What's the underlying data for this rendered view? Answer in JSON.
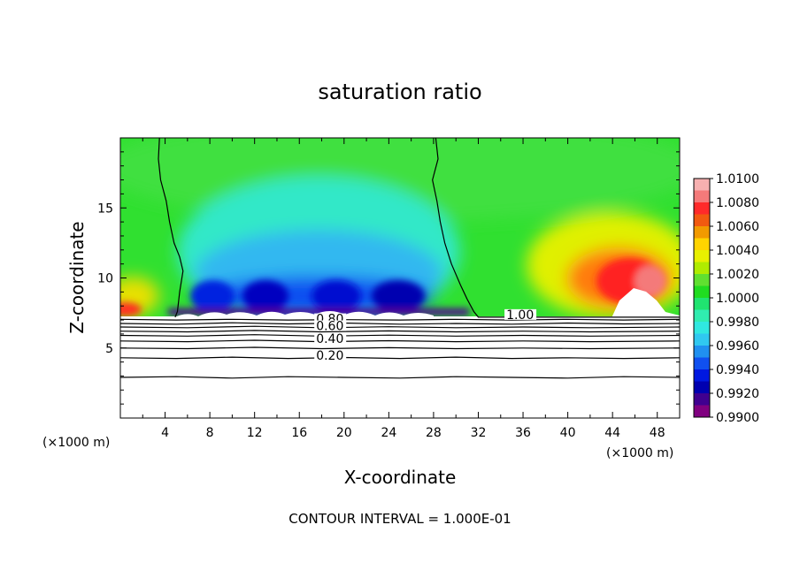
{
  "chart_data": {
    "type": "heatmap",
    "title": "saturation ratio",
    "xlabel": "X-coordinate",
    "ylabel": "Z-coordinate",
    "x_unit_left": "(×1000 m)",
    "x_unit_right": "(×1000 m)",
    "xlim": [
      0,
      50
    ],
    "ylim": [
      0,
      20
    ],
    "x_ticks": [
      "4",
      "8",
      "12",
      "16",
      "20",
      "24",
      "28",
      "32",
      "36",
      "40",
      "44",
      "48"
    ],
    "y_ticks": [
      "5",
      "10",
      "15"
    ],
    "footer": "CONTOUR INTERVAL = 1.000E-01",
    "colorbar": {
      "labels": [
        "1.0100",
        "1.0080",
        "1.0060",
        "1.0040",
        "1.0020",
        "1.0000",
        "0.9980",
        "0.9960",
        "0.9940",
        "0.9920",
        "0.9900"
      ],
      "colors": [
        "#f7b0b0",
        "#f47a7a",
        "#ff2a2a",
        "#f25a10",
        "#f29a00",
        "#ffd400",
        "#e8f000",
        "#b0ec00",
        "#60e030",
        "#20dc20",
        "#20e470",
        "#30ecb0",
        "#30e8e0",
        "#30c8f0",
        "#2090f0",
        "#1050f0",
        "#0018e0",
        "#0000b0",
        "#400090",
        "#800080"
      ]
    },
    "contour_labels": [
      {
        "text": "1.00",
        "x": 34.5,
        "y": 7.2
      },
      {
        "text": "0.80",
        "x": 17.5,
        "y": 6.9
      },
      {
        "text": "0.60",
        "x": 17.5,
        "y": 6.4
      },
      {
        "text": "0.40",
        "x": 17.5,
        "y": 5.5
      },
      {
        "text": "0.20",
        "x": 17.5,
        "y": 4.3
      }
    ],
    "contours": [
      {
        "level": "1.00",
        "points": [
          [
            3.5,
            20
          ],
          [
            3.4,
            18.5
          ],
          [
            3.6,
            17
          ],
          [
            4.1,
            15.5
          ],
          [
            4.4,
            14
          ],
          [
            4.8,
            12.5
          ],
          [
            5.3,
            11.5
          ],
          [
            5.6,
            10.5
          ],
          [
            5.3,
            9
          ],
          [
            5.1,
            7.6
          ],
          [
            4.9,
            7.2
          ]
        ]
      },
      {
        "level": "1.00",
        "points": [
          [
            28.2,
            20
          ],
          [
            28.4,
            18.5
          ],
          [
            27.9,
            17
          ],
          [
            28.3,
            15.5
          ],
          [
            28.6,
            14
          ],
          [
            29.0,
            12.5
          ],
          [
            29.6,
            11
          ],
          [
            30.4,
            9.5
          ],
          [
            31.0,
            8.5
          ],
          [
            31.6,
            7.6
          ],
          [
            32.0,
            7.2
          ],
          [
            50,
            7.2
          ]
        ]
      },
      {
        "level": "0.90",
        "points": [
          [
            0,
            7.05
          ],
          [
            5,
            7.0
          ],
          [
            10,
            7.05
          ],
          [
            15,
            7.0
          ],
          [
            20,
            7.02
          ],
          [
            25,
            7.0
          ],
          [
            30,
            7.05
          ],
          [
            35,
            7.0
          ],
          [
            40,
            7.05
          ],
          [
            45,
            7.0
          ],
          [
            50,
            7.05
          ]
        ]
      },
      {
        "level": "0.80",
        "points": [
          [
            0,
            6.75
          ],
          [
            5,
            6.7
          ],
          [
            10,
            6.8
          ],
          [
            15,
            6.72
          ],
          [
            20,
            6.78
          ],
          [
            25,
            6.7
          ],
          [
            30,
            6.75
          ],
          [
            35,
            6.7
          ],
          [
            40,
            6.78
          ],
          [
            45,
            6.72
          ],
          [
            50,
            6.75
          ]
        ]
      },
      {
        "level": "0.70",
        "points": [
          [
            0,
            6.5
          ],
          [
            6,
            6.45
          ],
          [
            12,
            6.55
          ],
          [
            18,
            6.45
          ],
          [
            24,
            6.52
          ],
          [
            30,
            6.45
          ],
          [
            36,
            6.5
          ],
          [
            42,
            6.45
          ],
          [
            50,
            6.5
          ]
        ]
      },
      {
        "level": "0.60",
        "points": [
          [
            0,
            6.2
          ],
          [
            6,
            6.15
          ],
          [
            12,
            6.25
          ],
          [
            18,
            6.15
          ],
          [
            24,
            6.22
          ],
          [
            30,
            6.15
          ],
          [
            36,
            6.2
          ],
          [
            42,
            6.15
          ],
          [
            50,
            6.2
          ]
        ]
      },
      {
        "level": "0.50",
        "points": [
          [
            0,
            5.9
          ],
          [
            6,
            5.85
          ],
          [
            12,
            5.95
          ],
          [
            18,
            5.85
          ],
          [
            24,
            5.92
          ],
          [
            30,
            5.85
          ],
          [
            36,
            5.9
          ],
          [
            42,
            5.85
          ],
          [
            50,
            5.9
          ]
        ]
      },
      {
        "level": "0.40",
        "points": [
          [
            0,
            5.5
          ],
          [
            6,
            5.45
          ],
          [
            12,
            5.55
          ],
          [
            18,
            5.45
          ],
          [
            24,
            5.52
          ],
          [
            30,
            5.45
          ],
          [
            36,
            5.5
          ],
          [
            42,
            5.45
          ],
          [
            50,
            5.5
          ]
        ]
      },
      {
        "level": "0.30",
        "points": [
          [
            0,
            5.0
          ],
          [
            6,
            4.95
          ],
          [
            12,
            5.05
          ],
          [
            18,
            4.95
          ],
          [
            24,
            5.02
          ],
          [
            30,
            4.95
          ],
          [
            36,
            5.0
          ],
          [
            42,
            4.95
          ],
          [
            50,
            5.0
          ]
        ]
      },
      {
        "level": "0.20",
        "points": [
          [
            0,
            4.3
          ],
          [
            5,
            4.25
          ],
          [
            10,
            4.35
          ],
          [
            15,
            4.25
          ],
          [
            20,
            4.32
          ],
          [
            25,
            4.25
          ],
          [
            30,
            4.35
          ],
          [
            35,
            4.25
          ],
          [
            40,
            4.3
          ],
          [
            45,
            4.25
          ],
          [
            50,
            4.3
          ]
        ]
      },
      {
        "level": "0.10",
        "points": [
          [
            0,
            2.9
          ],
          [
            5,
            2.95
          ],
          [
            10,
            2.85
          ],
          [
            15,
            2.95
          ],
          [
            20,
            2.9
          ],
          [
            25,
            2.85
          ],
          [
            30,
            2.95
          ],
          [
            35,
            2.9
          ],
          [
            40,
            2.85
          ],
          [
            45,
            2.95
          ],
          [
            50,
            2.9
          ]
        ]
      }
    ]
  }
}
